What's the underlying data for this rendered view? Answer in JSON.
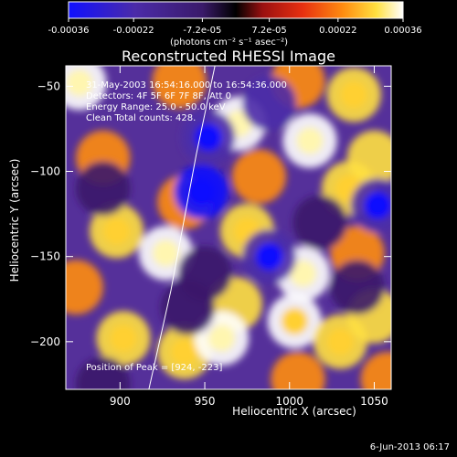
{
  "colorbar": {
    "ticks": [
      "-0.00036",
      "-0.00022",
      "-7.2e-05",
      "7.2e-05",
      "0.00022",
      "0.00036"
    ],
    "tick_values": [
      -0.00036,
      -0.00022,
      -7.2e-05,
      7.2e-05,
      0.00022,
      0.00036
    ],
    "range": [
      -0.00036,
      0.00036
    ],
    "label": "(photons cm⁻² s⁻¹ asec⁻²)"
  },
  "header": {
    "title": "Reconstructed RHESSI Image",
    "footer_date": "6-Jun-2013 06:17"
  },
  "annotations": {
    "time": "31-May-2003 16:54:16.000 to 16:54:36.000",
    "detectors": "Detectors: 4F 5F 6F 7F 8F, Att 0",
    "energy": "Energy Range: 25.0 - 50.0 keV",
    "clean": "Clean    Total counts: 428.",
    "peak": "Position of Peak = [924, -223]"
  },
  "chart_data": {
    "type": "heatmap",
    "title": "Reconstructed RHESSI Image",
    "xlabel": "Heliocentric X (arcsec)",
    "ylabel": "Heliocentric Y (arcsec)",
    "xlim": [
      868,
      1060
    ],
    "ylim": [
      -228,
      -38
    ],
    "xticks": [
      900,
      950,
      1000,
      1050
    ],
    "yticks": [
      -50,
      -100,
      -150,
      -200
    ],
    "xtick_labels": [
      "900",
      "950",
      "1000",
      "1050"
    ],
    "ytick_labels": [
      "−50",
      "−100",
      "−150",
      "−200"
    ],
    "colormap": [
      "#1010ff",
      "#4b2ba8",
      "#3a1a6a",
      "#000000",
      "#9a1010",
      "#e83010",
      "#ff8c10",
      "#ffe040",
      "#ffffff"
    ],
    "limb": [
      [
        917,
        -228
      ],
      [
        930,
        -170
      ],
      [
        945,
        -90
      ],
      [
        956,
        -38
      ]
    ],
    "blobs": [
      {
        "x": 876,
        "y": -48,
        "v": 0.95
      },
      {
        "x": 935,
        "y": -47,
        "v": 0.55
      },
      {
        "x": 1005,
        "y": -47,
        "v": 0.45
      },
      {
        "x": 1038,
        "y": -55,
        "v": 0.75
      },
      {
        "x": 970,
        "y": -72,
        "v": 0.95
      },
      {
        "x": 1012,
        "y": -82,
        "v": 1.0
      },
      {
        "x": 890,
        "y": -92,
        "v": 0.6
      },
      {
        "x": 1050,
        "y": -92,
        "v": 0.7
      },
      {
        "x": 982,
        "y": -103,
        "v": 0.6
      },
      {
        "x": 1035,
        "y": -110,
        "v": 0.85
      },
      {
        "x": 938,
        "y": -118,
        "v": 0.5
      },
      {
        "x": 898,
        "y": -135,
        "v": 0.8
      },
      {
        "x": 927,
        "y": -148,
        "v": 1.0
      },
      {
        "x": 975,
        "y": -135,
        "v": 0.75
      },
      {
        "x": 1008,
        "y": -160,
        "v": 1.0
      },
      {
        "x": 1040,
        "y": -148,
        "v": 0.55
      },
      {
        "x": 874,
        "y": -168,
        "v": 0.45
      },
      {
        "x": 968,
        "y": -178,
        "v": 0.65
      },
      {
        "x": 1003,
        "y": -188,
        "v": 0.9
      },
      {
        "x": 1050,
        "y": -185,
        "v": 0.7
      },
      {
        "x": 902,
        "y": -198,
        "v": 0.8
      },
      {
        "x": 938,
        "y": -206,
        "v": 0.75
      },
      {
        "x": 960,
        "y": -198,
        "v": 1.0
      },
      {
        "x": 1030,
        "y": -200,
        "v": 0.85
      },
      {
        "x": 1005,
        "y": -222,
        "v": 0.6
      },
      {
        "x": 1058,
        "y": -222,
        "v": 0.55
      },
      {
        "x": 890,
        "y": -110,
        "v": -0.6
      },
      {
        "x": 952,
        "y": -80,
        "v": -0.8
      },
      {
        "x": 948,
        "y": -112,
        "v": -1.0
      },
      {
        "x": 988,
        "y": -60,
        "v": -0.7
      },
      {
        "x": 1052,
        "y": -120,
        "v": -0.75
      },
      {
        "x": 988,
        "y": -150,
        "v": -0.8
      },
      {
        "x": 1018,
        "y": -130,
        "v": -0.6
      },
      {
        "x": 890,
        "y": -225,
        "v": -0.55
      },
      {
        "x": 950,
        "y": -160,
        "v": -0.5
      },
      {
        "x": 940,
        "y": -180,
        "v": -0.45
      },
      {
        "x": 1040,
        "y": -168,
        "v": -0.5
      }
    ]
  }
}
